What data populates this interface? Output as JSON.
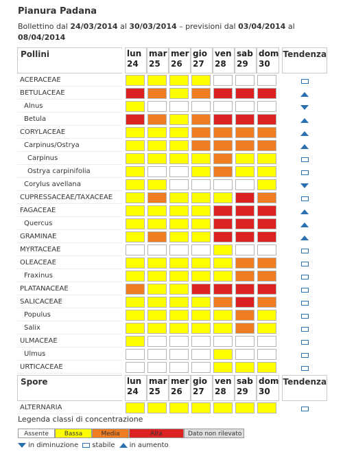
{
  "title": "Pianura Padana",
  "subtitle": {
    "prefix": "Bollettino dal ",
    "from": "24/03/2014",
    "mid": " al ",
    "to": "30/03/2014",
    "forecast_prefix": " – previsioni dal ",
    "fc_from": "03/04/2014",
    "fc_mid": " al ",
    "fc_to": "08/04/2014"
  },
  "days": [
    {
      "name": "lun",
      "num": "24"
    },
    {
      "name": "mar",
      "num": "25"
    },
    {
      "name": "mer",
      "num": "26"
    },
    {
      "name": "gio",
      "num": "27"
    },
    {
      "name": "ven",
      "num": "28"
    },
    {
      "name": "sab",
      "num": "29"
    },
    {
      "name": "dom",
      "num": "30"
    }
  ],
  "pollini_header": "Pollini",
  "spore_header": "Spore",
  "trend_header": "Tendenza",
  "pollini": [
    {
      "name": "ACERACEAE",
      "level": 0,
      "values": [
        1,
        1,
        1,
        1,
        0,
        0,
        0
      ],
      "trend": "stable"
    },
    {
      "name": "BETULACEAE",
      "level": 0,
      "values": [
        3,
        2,
        1,
        2,
        3,
        3,
        3
      ],
      "trend": "up"
    },
    {
      "name": "Alnus",
      "level": 1,
      "values": [
        1,
        0,
        0,
        0,
        0,
        0,
        0
      ],
      "trend": "down"
    },
    {
      "name": "Betula",
      "level": 1,
      "values": [
        3,
        2,
        1,
        2,
        3,
        3,
        3
      ],
      "trend": "up"
    },
    {
      "name": "CORYLACEAE",
      "level": 0,
      "values": [
        1,
        1,
        1,
        2,
        2,
        2,
        2
      ],
      "trend": "up"
    },
    {
      "name": "Carpinus/Ostrya",
      "level": 1,
      "values": [
        1,
        1,
        1,
        2,
        2,
        2,
        2
      ],
      "trend": "up"
    },
    {
      "name": "Carpinus",
      "level": 2,
      "values": [
        1,
        1,
        1,
        1,
        2,
        1,
        1
      ],
      "trend": "stable"
    },
    {
      "name": "Ostrya carpinifolia",
      "level": 2,
      "values": [
        1,
        0,
        0,
        1,
        2,
        1,
        1
      ],
      "trend": "stable"
    },
    {
      "name": "Corylus avellana",
      "level": 1,
      "values": [
        1,
        1,
        0,
        0,
        0,
        0,
        1
      ],
      "trend": "down"
    },
    {
      "name": "CUPRESSACEAE/TAXACEAE",
      "level": 0,
      "values": [
        1,
        2,
        1,
        1,
        1,
        3,
        2
      ],
      "trend": "stable"
    },
    {
      "name": "FAGACEAE",
      "level": 0,
      "values": [
        1,
        1,
        1,
        1,
        3,
        3,
        3
      ],
      "trend": "up"
    },
    {
      "name": "Quercus",
      "level": 1,
      "values": [
        1,
        1,
        1,
        1,
        3,
        3,
        3
      ],
      "trend": "up"
    },
    {
      "name": "GRAMINAE",
      "level": 0,
      "values": [
        1,
        2,
        1,
        1,
        3,
        3,
        3
      ],
      "trend": "up"
    },
    {
      "name": "MYRTACEAE",
      "level": 0,
      "values": [
        0,
        0,
        0,
        0,
        1,
        0,
        0
      ],
      "trend": "stable"
    },
    {
      "name": "OLEACEAE",
      "level": 0,
      "values": [
        1,
        1,
        1,
        1,
        1,
        2,
        2
      ],
      "trend": "stable"
    },
    {
      "name": "Fraxinus",
      "level": 1,
      "values": [
        1,
        1,
        1,
        1,
        1,
        2,
        2
      ],
      "trend": "stable"
    },
    {
      "name": "PLATANACEAE",
      "level": 0,
      "values": [
        2,
        1,
        1,
        3,
        3,
        3,
        3
      ],
      "trend": "stable"
    },
    {
      "name": "SALICACEAE",
      "level": 0,
      "values": [
        1,
        1,
        1,
        1,
        2,
        3,
        2
      ],
      "trend": "stable"
    },
    {
      "name": "Populus",
      "level": 1,
      "values": [
        1,
        1,
        1,
        1,
        1,
        2,
        1
      ],
      "trend": "stable"
    },
    {
      "name": "Salix",
      "level": 1,
      "values": [
        1,
        1,
        1,
        1,
        1,
        2,
        1
      ],
      "trend": "stable"
    },
    {
      "name": "ULMACEAE",
      "level": 0,
      "values": [
        1,
        0,
        0,
        0,
        0,
        0,
        0
      ],
      "trend": "stable"
    },
    {
      "name": "Ulmus",
      "level": 1,
      "values": [
        0,
        0,
        0,
        0,
        1,
        0,
        0
      ],
      "trend": "stable"
    },
    {
      "name": "URTICACEAE",
      "level": 0,
      "values": [
        0,
        0,
        0,
        0,
        1,
        1,
        1
      ],
      "trend": "stable"
    }
  ],
  "spore": [
    {
      "name": "ALTERNARIA",
      "level": 0,
      "values": [
        1,
        1,
        1,
        1,
        1,
        1,
        1
      ],
      "trend": "stable"
    }
  ],
  "legend": {
    "title": "Legenda classi di concentrazione",
    "assente": "Assente",
    "bassa": "Bassa",
    "media": "Media",
    "alta": "Alta",
    "nr": "Dato non rilevato"
  },
  "trend_legend": {
    "down": "in diminuzione",
    "stable": "stabile",
    "up": "in aumento"
  },
  "colors": {
    "assente": "#ffffff",
    "bassa": "#ffff00",
    "media": "#ef7d22",
    "alta": "#dd2222",
    "nr": "#dddddd",
    "trend_icon": "#2a6fb0"
  }
}
